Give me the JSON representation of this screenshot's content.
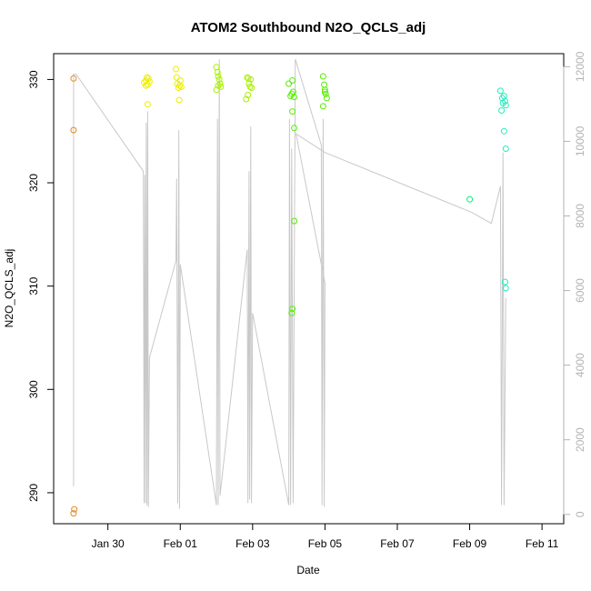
{
  "chart_data": {
    "type": "scatter",
    "title": "ATOM2 Southbound N2O_QCLS_adj",
    "xlabel": "Date",
    "ylabel": "N2O_QCLS_adj",
    "x_ticks": [
      "Jan 30",
      "Feb 01",
      "Feb 03",
      "Feb 05",
      "Feb 07",
      "Feb 09",
      "Feb 11"
    ],
    "x_tick_day": [
      0,
      2,
      4,
      6,
      8,
      10,
      12
    ],
    "xlim_day": [
      -1.5,
      12.6
    ],
    "ylim": [
      287,
      332.5
    ],
    "y_ticks": [
      290,
      300,
      310,
      320,
      330
    ],
    "y2lim": [
      -250,
      12350
    ],
    "y2_ticks": [
      0,
      2000,
      4000,
      6000,
      8000,
      10000,
      12000
    ],
    "grid": false,
    "point_series": [
      {
        "color": "#E8871E",
        "points": [
          [
            -0.95,
            330.1
          ],
          [
            -0.95,
            325.1
          ],
          [
            -0.93,
            288.4
          ],
          [
            -0.95,
            288.0
          ]
        ]
      },
      {
        "color": "#EEEE00",
        "points": [
          [
            1.0,
            329.7
          ],
          [
            1.05,
            329.9
          ],
          [
            1.08,
            330.2
          ],
          [
            1.1,
            329.5
          ],
          [
            1.12,
            330.1
          ],
          [
            1.15,
            329.8
          ],
          [
            1.05,
            329.4
          ],
          [
            1.1,
            327.6
          ],
          [
            1.88,
            331.0
          ],
          [
            1.9,
            330.2
          ],
          [
            1.92,
            329.6
          ],
          [
            1.95,
            329.2
          ],
          [
            1.98,
            329.4
          ],
          [
            2.0,
            329.9
          ],
          [
            2.03,
            329.3
          ],
          [
            1.97,
            328.0
          ]
        ]
      },
      {
        "color": "#AAF000",
        "points": [
          [
            3.0,
            331.2
          ],
          [
            3.03,
            330.7
          ],
          [
            3.05,
            330.3
          ],
          [
            3.08,
            330.0
          ],
          [
            3.1,
            329.6
          ],
          [
            3.12,
            329.3
          ],
          [
            3.0,
            329.0
          ],
          [
            3.05,
            329.4
          ],
          [
            3.85,
            330.2
          ],
          [
            3.88,
            330.1
          ],
          [
            3.9,
            329.6
          ],
          [
            3.93,
            329.3
          ],
          [
            3.95,
            330.0
          ],
          [
            3.97,
            329.2
          ],
          [
            3.87,
            328.5
          ],
          [
            3.82,
            328.1
          ]
        ]
      },
      {
        "color": "#55EE00",
        "points": [
          [
            5.0,
            329.6
          ],
          [
            5.05,
            328.4
          ],
          [
            5.08,
            328.6
          ],
          [
            5.1,
            329.9
          ],
          [
            5.12,
            328.8
          ],
          [
            5.15,
            328.3
          ],
          [
            5.1,
            326.9
          ],
          [
            5.15,
            325.3
          ],
          [
            5.15,
            316.3
          ],
          [
            5.1,
            307.8
          ],
          [
            5.08,
            307.4
          ],
          [
            5.95,
            330.3
          ],
          [
            5.98,
            329.5
          ],
          [
            6.0,
            329.0
          ],
          [
            6.02,
            328.6
          ],
          [
            6.05,
            328.2
          ],
          [
            5.95,
            327.4
          ],
          [
            6.0,
            328.8
          ]
        ]
      },
      {
        "color": "#00EE77",
        "points": [
          [
            10.0,
            318.4
          ]
        ]
      },
      {
        "color": "#22EEBB",
        "points": [
          [
            10.85,
            328.9
          ],
          [
            10.9,
            328.2
          ],
          [
            10.92,
            327.7
          ],
          [
            10.95,
            328.4
          ],
          [
            10.98,
            327.9
          ],
          [
            11.0,
            327.5
          ],
          [
            10.88,
            327.0
          ],
          [
            10.95,
            325.0
          ],
          [
            11.0,
            323.3
          ],
          [
            10.98,
            310.4
          ],
          [
            11.0,
            309.8
          ]
        ]
      }
    ],
    "line_series": [
      {
        "color": "#c8c8c8",
        "axis": "right",
        "points": [
          [
            -0.95,
            750
          ],
          [
            -0.95,
            11800
          ],
          [
            -0.9,
            11800
          ],
          [
            -0.88,
            11800
          ],
          [
            0.98,
            9200
          ],
          [
            1.0,
            300
          ],
          [
            1.02,
            9100
          ],
          [
            1.04,
            300
          ],
          [
            1.06,
            10500
          ],
          [
            1.08,
            250
          ],
          [
            1.1,
            10800
          ],
          [
            1.12,
            200
          ],
          [
            1.15,
            4200
          ],
          [
            1.88,
            6800
          ],
          [
            1.9,
            9000
          ],
          [
            1.93,
            300
          ],
          [
            1.96,
            10300
          ],
          [
            1.98,
            150
          ],
          [
            2.0,
            6700
          ],
          [
            3.0,
            250
          ],
          [
            3.03,
            10600
          ],
          [
            3.05,
            250
          ],
          [
            3.08,
            12200
          ],
          [
            3.1,
            500
          ],
          [
            3.85,
            7100
          ],
          [
            3.87,
            300
          ],
          [
            3.9,
            9200
          ],
          [
            3.92,
            400
          ],
          [
            3.95,
            10400
          ],
          [
            3.97,
            300
          ],
          [
            4.0,
            5400
          ],
          [
            5.0,
            250
          ],
          [
            5.02,
            10600
          ],
          [
            5.05,
            250
          ],
          [
            5.08,
            9800
          ],
          [
            5.12,
            300
          ],
          [
            5.18,
            12200
          ],
          [
            5.9,
            9900
          ],
          [
            5.92,
            250
          ],
          [
            5.95,
            10600
          ],
          [
            5.98,
            200
          ],
          [
            6.0,
            6200
          ],
          [
            5.2,
            10200
          ],
          [
            6.0,
            9700
          ],
          [
            10.05,
            8100
          ],
          [
            10.6,
            7800
          ],
          [
            10.85,
            8800
          ],
          [
            10.88,
            250
          ],
          [
            10.92,
            9700
          ],
          [
            10.95,
            250
          ],
          [
            11.0,
            5800
          ]
        ]
      }
    ]
  }
}
